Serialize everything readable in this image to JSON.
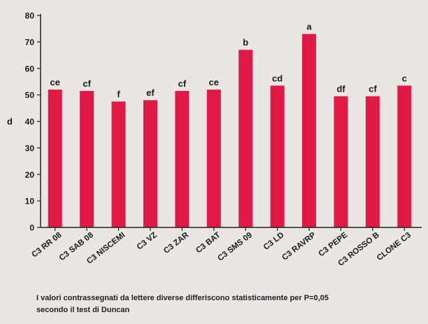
{
  "chart_data": {
    "type": "bar",
    "categories": [
      "C3 RR 08",
      "C3 SAB 08",
      "C3 NISCEMI",
      "C3 VZ",
      "C3 ZAR",
      "C3 BAT",
      "C3 SMS 09",
      "C3 LD",
      "C3 RAVRP",
      "C3 PEPE",
      "C3 ROSSO B",
      "CLONE C3"
    ],
    "values": [
      52,
      51.5,
      47.5,
      48,
      51.5,
      52,
      67,
      53.5,
      73,
      49.5,
      49.5,
      53.5
    ],
    "significance": [
      "ce",
      "cf",
      "f",
      "ef",
      "cf",
      "ce",
      "b",
      "cd",
      "a",
      "df",
      "cf",
      "c"
    ],
    "title": "",
    "xlabel": "",
    "ylabel": "d",
    "ylim": [
      0,
      80
    ],
    "yticks": [
      0,
      10,
      20,
      30,
      40,
      50,
      60,
      70,
      80
    ],
    "bar_color": "#e01a44",
    "grid": false
  },
  "caption": {
    "line1": "I valori contrassegnati da lettere diverse differiscono statisticamente per P=0,05",
    "line2": "secondo il test di Duncan"
  }
}
